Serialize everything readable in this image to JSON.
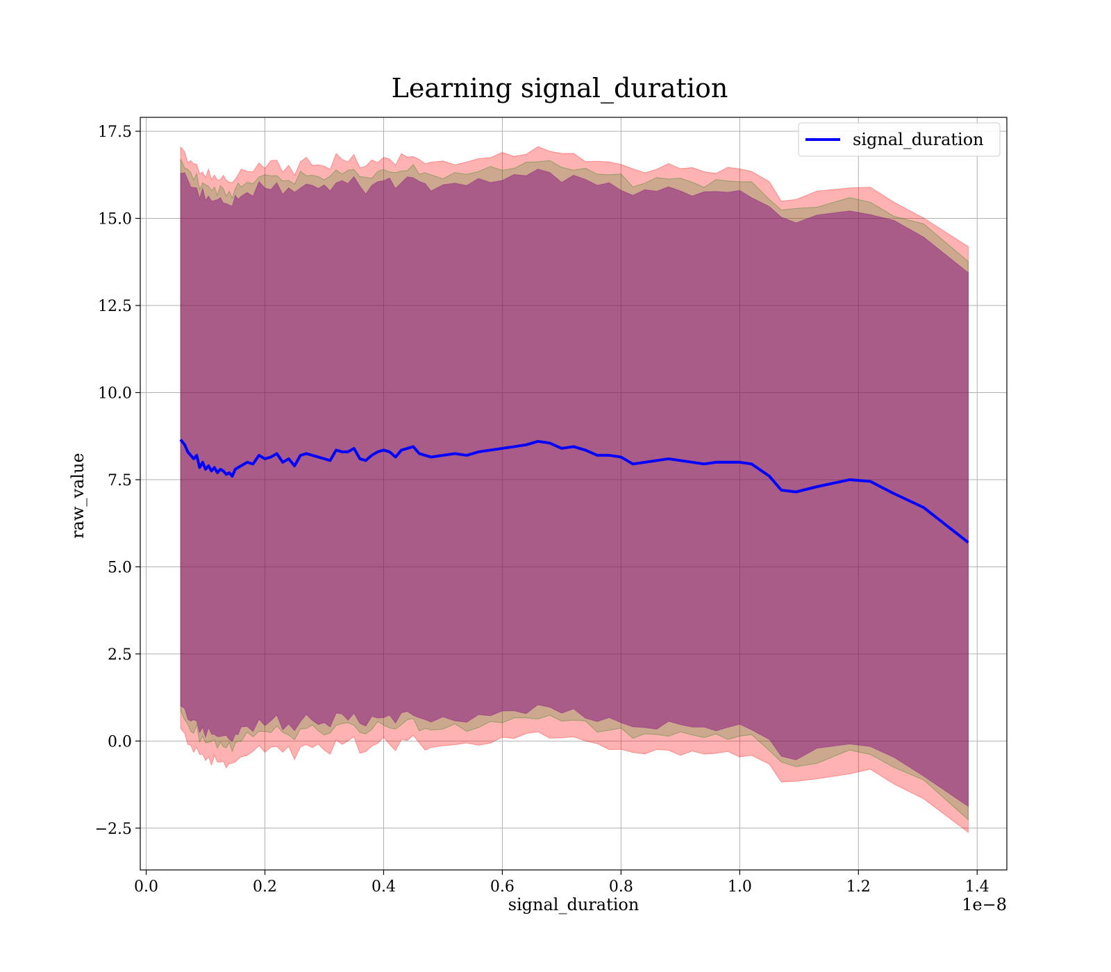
{
  "chart_data": {
    "type": "line",
    "title": "Learning signal_duration",
    "xlabel": "signal_duration",
    "ylabel": "raw_value",
    "x_offset_text": "1e−8",
    "x_scale_label_factor": 1e-08,
    "xlim": [
      -1e-10,
      1.45e-08
    ],
    "ylim": [
      -3.7,
      17.9
    ],
    "x_ticks": [
      0.0,
      2e-09,
      4e-09,
      6e-09,
      8e-09,
      1e-08,
      1.2e-08,
      1.4e-08
    ],
    "x_tick_labels": [
      "0.0",
      "0.2",
      "0.4",
      "0.6",
      "0.8",
      "1.0",
      "1.2",
      "1.4"
    ],
    "y_ticks": [
      -2.5,
      0.0,
      2.5,
      5.0,
      7.5,
      10.0,
      12.5,
      15.0,
      17.5
    ],
    "y_tick_labels": [
      "−2.5",
      "0.0",
      "2.5",
      "5.0",
      "7.5",
      "10.0",
      "12.5",
      "15.0",
      "17.5"
    ],
    "grid": true,
    "legend_position": "top-right",
    "series": [
      {
        "name": "signal_duration",
        "color": "#0000ff",
        "x": [
          5.8e-10,
          6.5e-10,
          7e-10,
          7.5e-10,
          8e-10,
          8.5e-10,
          9e-10,
          9.5e-10,
          1e-09,
          1.05e-09,
          1.1e-09,
          1.15e-09,
          1.2e-09,
          1.25e-09,
          1.3e-09,
          1.35e-09,
          1.4e-09,
          1.45e-09,
          1.5e-09,
          1.55e-09,
          1.6e-09,
          1.7e-09,
          1.8e-09,
          1.9e-09,
          2e-09,
          2.1e-09,
          2.2e-09,
          2.3e-09,
          2.4e-09,
          2.5e-09,
          2.6e-09,
          2.7e-09,
          2.8e-09,
          2.9e-09,
          3e-09,
          3.1e-09,
          3.2e-09,
          3.3e-09,
          3.4e-09,
          3.5e-09,
          3.6e-09,
          3.7e-09,
          3.8e-09,
          3.9e-09,
          4e-09,
          4.1e-09,
          4.2e-09,
          4.3e-09,
          4.4e-09,
          4.5e-09,
          4.6e-09,
          4.7e-09,
          4.8e-09,
          5e-09,
          5.2e-09,
          5.4e-09,
          5.6e-09,
          5.8e-09,
          6e-09,
          6.2e-09,
          6.4e-09,
          6.6e-09,
          6.8e-09,
          7e-09,
          7.2e-09,
          7.4e-09,
          7.6e-09,
          7.8e-09,
          8e-09,
          8.2e-09,
          8.4e-09,
          8.6e-09,
          8.8e-09,
          9e-09,
          9.2e-09,
          9.4e-09,
          9.6e-09,
          9.8e-09,
          1e-08,
          1.02e-08,
          1.05e-08,
          1.07e-08,
          1.095e-08,
          1.13e-08,
          1.185e-08,
          1.22e-08,
          1.26e-08,
          1.31e-08,
          1.385e-08
        ],
        "values": [
          8.65,
          8.5,
          8.3,
          8.2,
          8.1,
          8.2,
          7.85,
          8.0,
          7.8,
          7.9,
          7.75,
          7.85,
          7.7,
          7.8,
          7.75,
          7.65,
          7.7,
          7.6,
          7.8,
          7.85,
          7.9,
          8.0,
          7.95,
          8.2,
          8.1,
          8.15,
          8.25,
          8.0,
          8.1,
          7.9,
          8.2,
          8.25,
          8.2,
          8.15,
          8.1,
          8.05,
          8.35,
          8.3,
          8.3,
          8.4,
          8.1,
          8.05,
          8.2,
          8.3,
          8.35,
          8.3,
          8.15,
          8.35,
          8.4,
          8.45,
          8.25,
          8.2,
          8.15,
          8.2,
          8.25,
          8.2,
          8.3,
          8.35,
          8.4,
          8.45,
          8.5,
          8.6,
          8.55,
          8.4,
          8.45,
          8.35,
          8.2,
          8.2,
          8.15,
          7.95,
          8.0,
          8.05,
          8.1,
          8.05,
          8.0,
          7.95,
          8.0,
          8.0,
          8.0,
          7.95,
          7.6,
          7.2,
          7.15,
          7.3,
          7.5,
          7.45,
          7.1,
          6.7,
          5.7
        ]
      }
    ],
    "bands": [
      {
        "name": "",
        "color": "#ff0000",
        "opacity": 0.3,
        "upper_offset": 8.4,
        "lower_offset": 8.35
      },
      {
        "name": "",
        "color": "#008000",
        "opacity": 0.2,
        "upper_offset": 8.05,
        "lower_offset": 7.85
      },
      {
        "name": "",
        "color": "#800080",
        "opacity": 0.45,
        "upper_offset": 7.75,
        "lower_offset": 7.6
      }
    ]
  }
}
